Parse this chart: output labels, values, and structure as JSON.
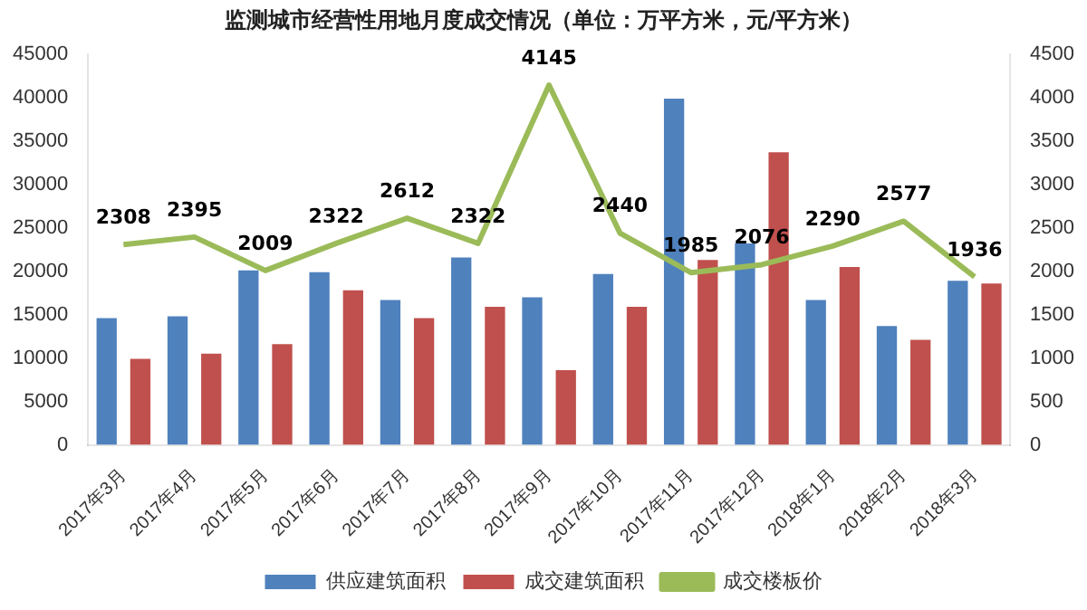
{
  "chart_data": {
    "type": "bar",
    "title": "监测城市经营性用地月度成交情况（单位：万平方米，元/平方米）",
    "categories": [
      "2017年3月",
      "2017年4月",
      "2017年5月",
      "2017年6月",
      "2017年7月",
      "2017年8月",
      "2017年9月",
      "2017年10月",
      "2017年11月",
      "2017年12月",
      "2018年1月",
      "2018年2月",
      "2018年3月"
    ],
    "series": [
      {
        "name": "供应建筑面积",
        "color": "#4f81bd",
        "values": [
          14600,
          14800,
          20100,
          19900,
          16700,
          21600,
          17000,
          19700,
          39900,
          23200,
          16700,
          13700,
          18900
        ]
      },
      {
        "name": "成交建筑面积",
        "color": "#c0504d",
        "values": [
          9900,
          10500,
          11600,
          17800,
          14600,
          15900,
          8600,
          15900,
          21300,
          33700,
          20500,
          12100,
          18600
        ]
      },
      {
        "name": "成交楼板价",
        "type": "line",
        "axis": "y2",
        "color": "#9bbb59",
        "values": [
          2308,
          2395,
          2009,
          2322,
          2612,
          2322,
          4145,
          2440,
          1985,
          2076,
          2290,
          2577,
          1936
        ],
        "value_labels": [
          "2308",
          "2395",
          "2009",
          "2322",
          "2612",
          "2322",
          "4145",
          "2440",
          "1985",
          "2076",
          "2290",
          "2577",
          "1936"
        ]
      }
    ],
    "ylim": [
      0,
      45000
    ],
    "yticks": [
      0,
      5000,
      10000,
      15000,
      20000,
      25000,
      30000,
      35000,
      40000,
      45000
    ],
    "y2lim": [
      0,
      4500
    ],
    "y2ticks": [
      0,
      500,
      1000,
      1500,
      2000,
      2500,
      3000,
      3500,
      4000,
      4500
    ],
    "grid": false,
    "legend": "bottom",
    "marker": "none",
    "line_style": "solid"
  }
}
